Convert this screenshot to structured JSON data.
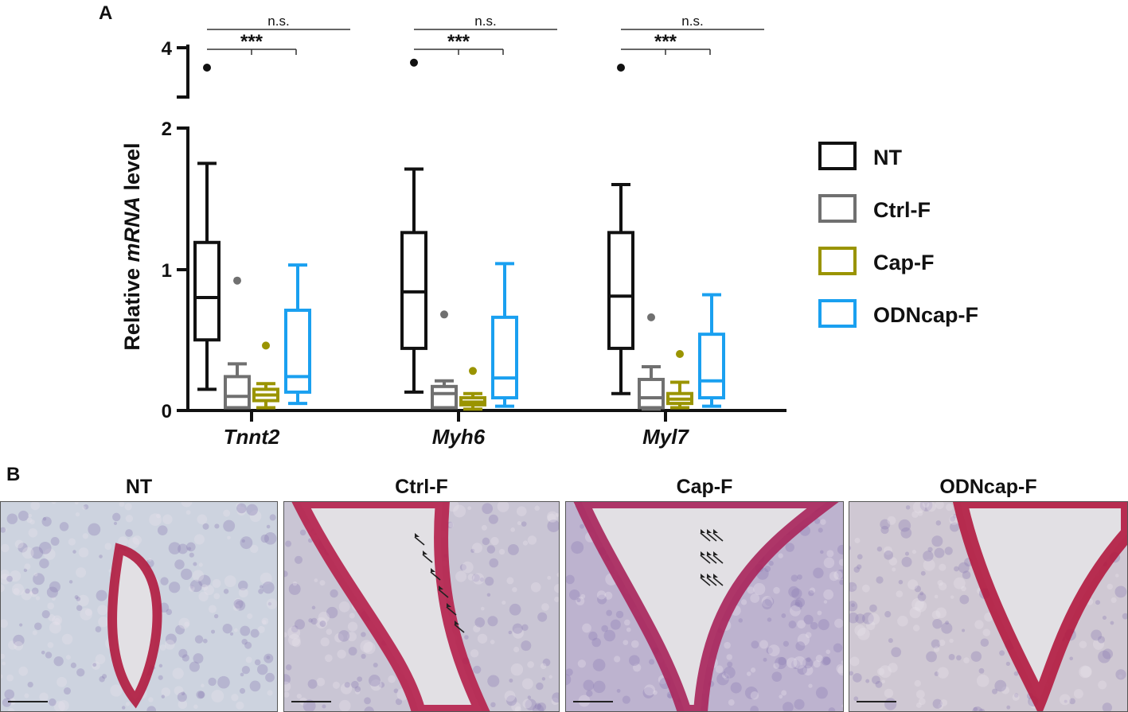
{
  "panels": {
    "a_label": "A",
    "b_label": "B"
  },
  "chart_data": {
    "type": "box",
    "ylabel_prefix": "Relative ",
    "ylabel_italic": "mRNA",
    "ylabel_suffix": " level",
    "y_ticks": [
      "0",
      "1",
      "2",
      "4"
    ],
    "y_axis_break": true,
    "genes": [
      "Tnnt2",
      "Myh6",
      "Myl7"
    ],
    "legend": [
      {
        "name": "NT",
        "color": "#111111"
      },
      {
        "name": "Ctrl-F",
        "color": "#707070"
      },
      {
        "name": "Cap-F",
        "color": "#9a9400"
      },
      {
        "name": "ODNcap-F",
        "color": "#1aa0f0"
      }
    ],
    "significance": {
      "ns": "n.s.",
      "stars": "***"
    },
    "boxes": [
      [
        {
          "min": 0.15,
          "q1": 0.5,
          "median": 0.8,
          "q3": 1.19,
          "max": 1.75,
          "outliers": [
            3.8
          ]
        },
        {
          "min": 0.02,
          "q1": 0.02,
          "median": 0.1,
          "q3": 0.24,
          "max": 0.33,
          "outliers": [
            0.92
          ]
        },
        {
          "min": 0.02,
          "q1": 0.07,
          "median": 0.11,
          "q3": 0.15,
          "max": 0.19,
          "outliers": [
            0.46
          ]
        },
        {
          "min": 0.05,
          "q1": 0.13,
          "median": 0.24,
          "q3": 0.71,
          "max": 1.03,
          "outliers": []
        }
      ],
      [
        {
          "min": 0.13,
          "q1": 0.44,
          "median": 0.84,
          "q3": 1.26,
          "max": 1.71,
          "outliers": [
            3.85
          ]
        },
        {
          "min": 0.02,
          "q1": 0.02,
          "median": 0.12,
          "q3": 0.17,
          "max": 0.21,
          "outliers": [
            0.68
          ]
        },
        {
          "min": 0.01,
          "q1": 0.04,
          "median": 0.06,
          "q3": 0.09,
          "max": 0.12,
          "outliers": [
            0.28
          ]
        },
        {
          "min": 0.03,
          "q1": 0.09,
          "median": 0.23,
          "q3": 0.66,
          "max": 1.04,
          "outliers": []
        }
      ],
      [
        {
          "min": 0.12,
          "q1": 0.44,
          "median": 0.81,
          "q3": 1.26,
          "max": 1.6,
          "outliers": [
            3.8
          ]
        },
        {
          "min": 0.01,
          "q1": 0.02,
          "median": 0.09,
          "q3": 0.22,
          "max": 0.31,
          "outliers": [
            0.66
          ]
        },
        {
          "min": 0.02,
          "q1": 0.05,
          "median": 0.08,
          "q3": 0.12,
          "max": 0.2,
          "outliers": [
            0.4
          ]
        },
        {
          "min": 0.03,
          "q1": 0.09,
          "median": 0.21,
          "q3": 0.54,
          "max": 0.82,
          "outliers": []
        }
      ]
    ]
  },
  "micrographs": [
    {
      "title": "NT",
      "base": "#cdd3df",
      "stain": "#b01a3e",
      "arrows": 0
    },
    {
      "title": "Ctrl-F",
      "base": "#c9c5d4",
      "stain": "#b51f4a",
      "arrows": 6
    },
    {
      "title": "Cap-F",
      "base": "#bdb3cf",
      "stain": "#a8245a",
      "arrows": 9
    },
    {
      "title": "ODNcap-F",
      "base": "#cfc8d3",
      "stain": "#b2193f",
      "arrows": 0
    }
  ]
}
